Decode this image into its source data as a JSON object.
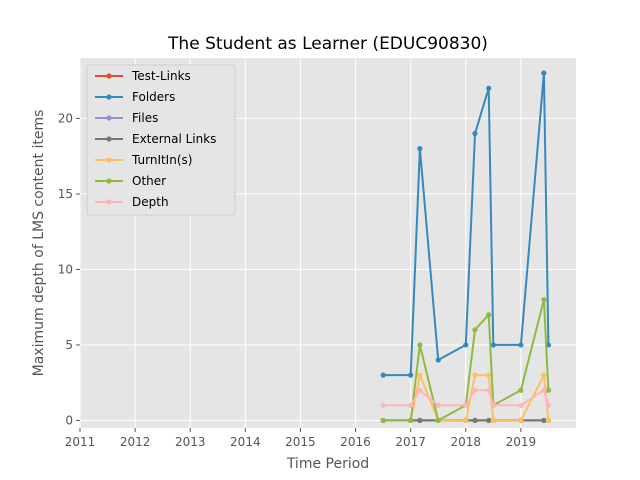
{
  "chart_data": {
    "type": "line",
    "title": "The Student as Learner (EDUC90830)",
    "xlabel": "Time Period",
    "ylabel": "Maximum depth of LMS content items",
    "xlim": [
      2011,
      2020
    ],
    "ylim": [
      -0.5,
      24
    ],
    "xticks": [
      "2011",
      "2012",
      "2013",
      "2014",
      "2015",
      "2016",
      "2017",
      "2018",
      "2019"
    ],
    "yticks": [
      "0",
      "5",
      "10",
      "15",
      "20"
    ],
    "grid": true,
    "legend_position": "upper-left",
    "x": [
      "2016-07",
      "2017-01",
      "2017-03",
      "2017-07",
      "2018-01",
      "2018-03",
      "2018-06",
      "2018-07",
      "2019-01",
      "2019-06",
      "2019-07"
    ],
    "series": [
      {
        "name": "Test-Links",
        "color": "#E24A33",
        "values": [
          0,
          0,
          0,
          0,
          0,
          0,
          0,
          0,
          0,
          0,
          0
        ]
      },
      {
        "name": "Folders",
        "color": "#348ABD",
        "values": [
          3,
          3,
          18,
          4,
          5,
          19,
          22,
          5,
          5,
          23,
          5
        ]
      },
      {
        "name": "Files",
        "color": "#988ED5",
        "values": [
          0,
          0,
          0,
          0,
          0,
          0,
          0,
          0,
          0,
          0,
          0
        ]
      },
      {
        "name": "External Links",
        "color": "#777777",
        "values": [
          0,
          0,
          0,
          0,
          0,
          0,
          0,
          0,
          0,
          0,
          0
        ]
      },
      {
        "name": "TurnItIn(s)",
        "color": "#FBC15E",
        "values": [
          0,
          0,
          3,
          0,
          0,
          3,
          3,
          0,
          0,
          3,
          0
        ]
      },
      {
        "name": "Other",
        "color": "#8EBA42",
        "values": [
          0,
          0,
          5,
          0,
          1,
          6,
          7,
          1,
          2,
          8,
          2
        ]
      },
      {
        "name": "Depth",
        "color": "#FFB5B8",
        "values": [
          1,
          1,
          2,
          1,
          1,
          2,
          2,
          1,
          1,
          2,
          1
        ]
      }
    ]
  }
}
